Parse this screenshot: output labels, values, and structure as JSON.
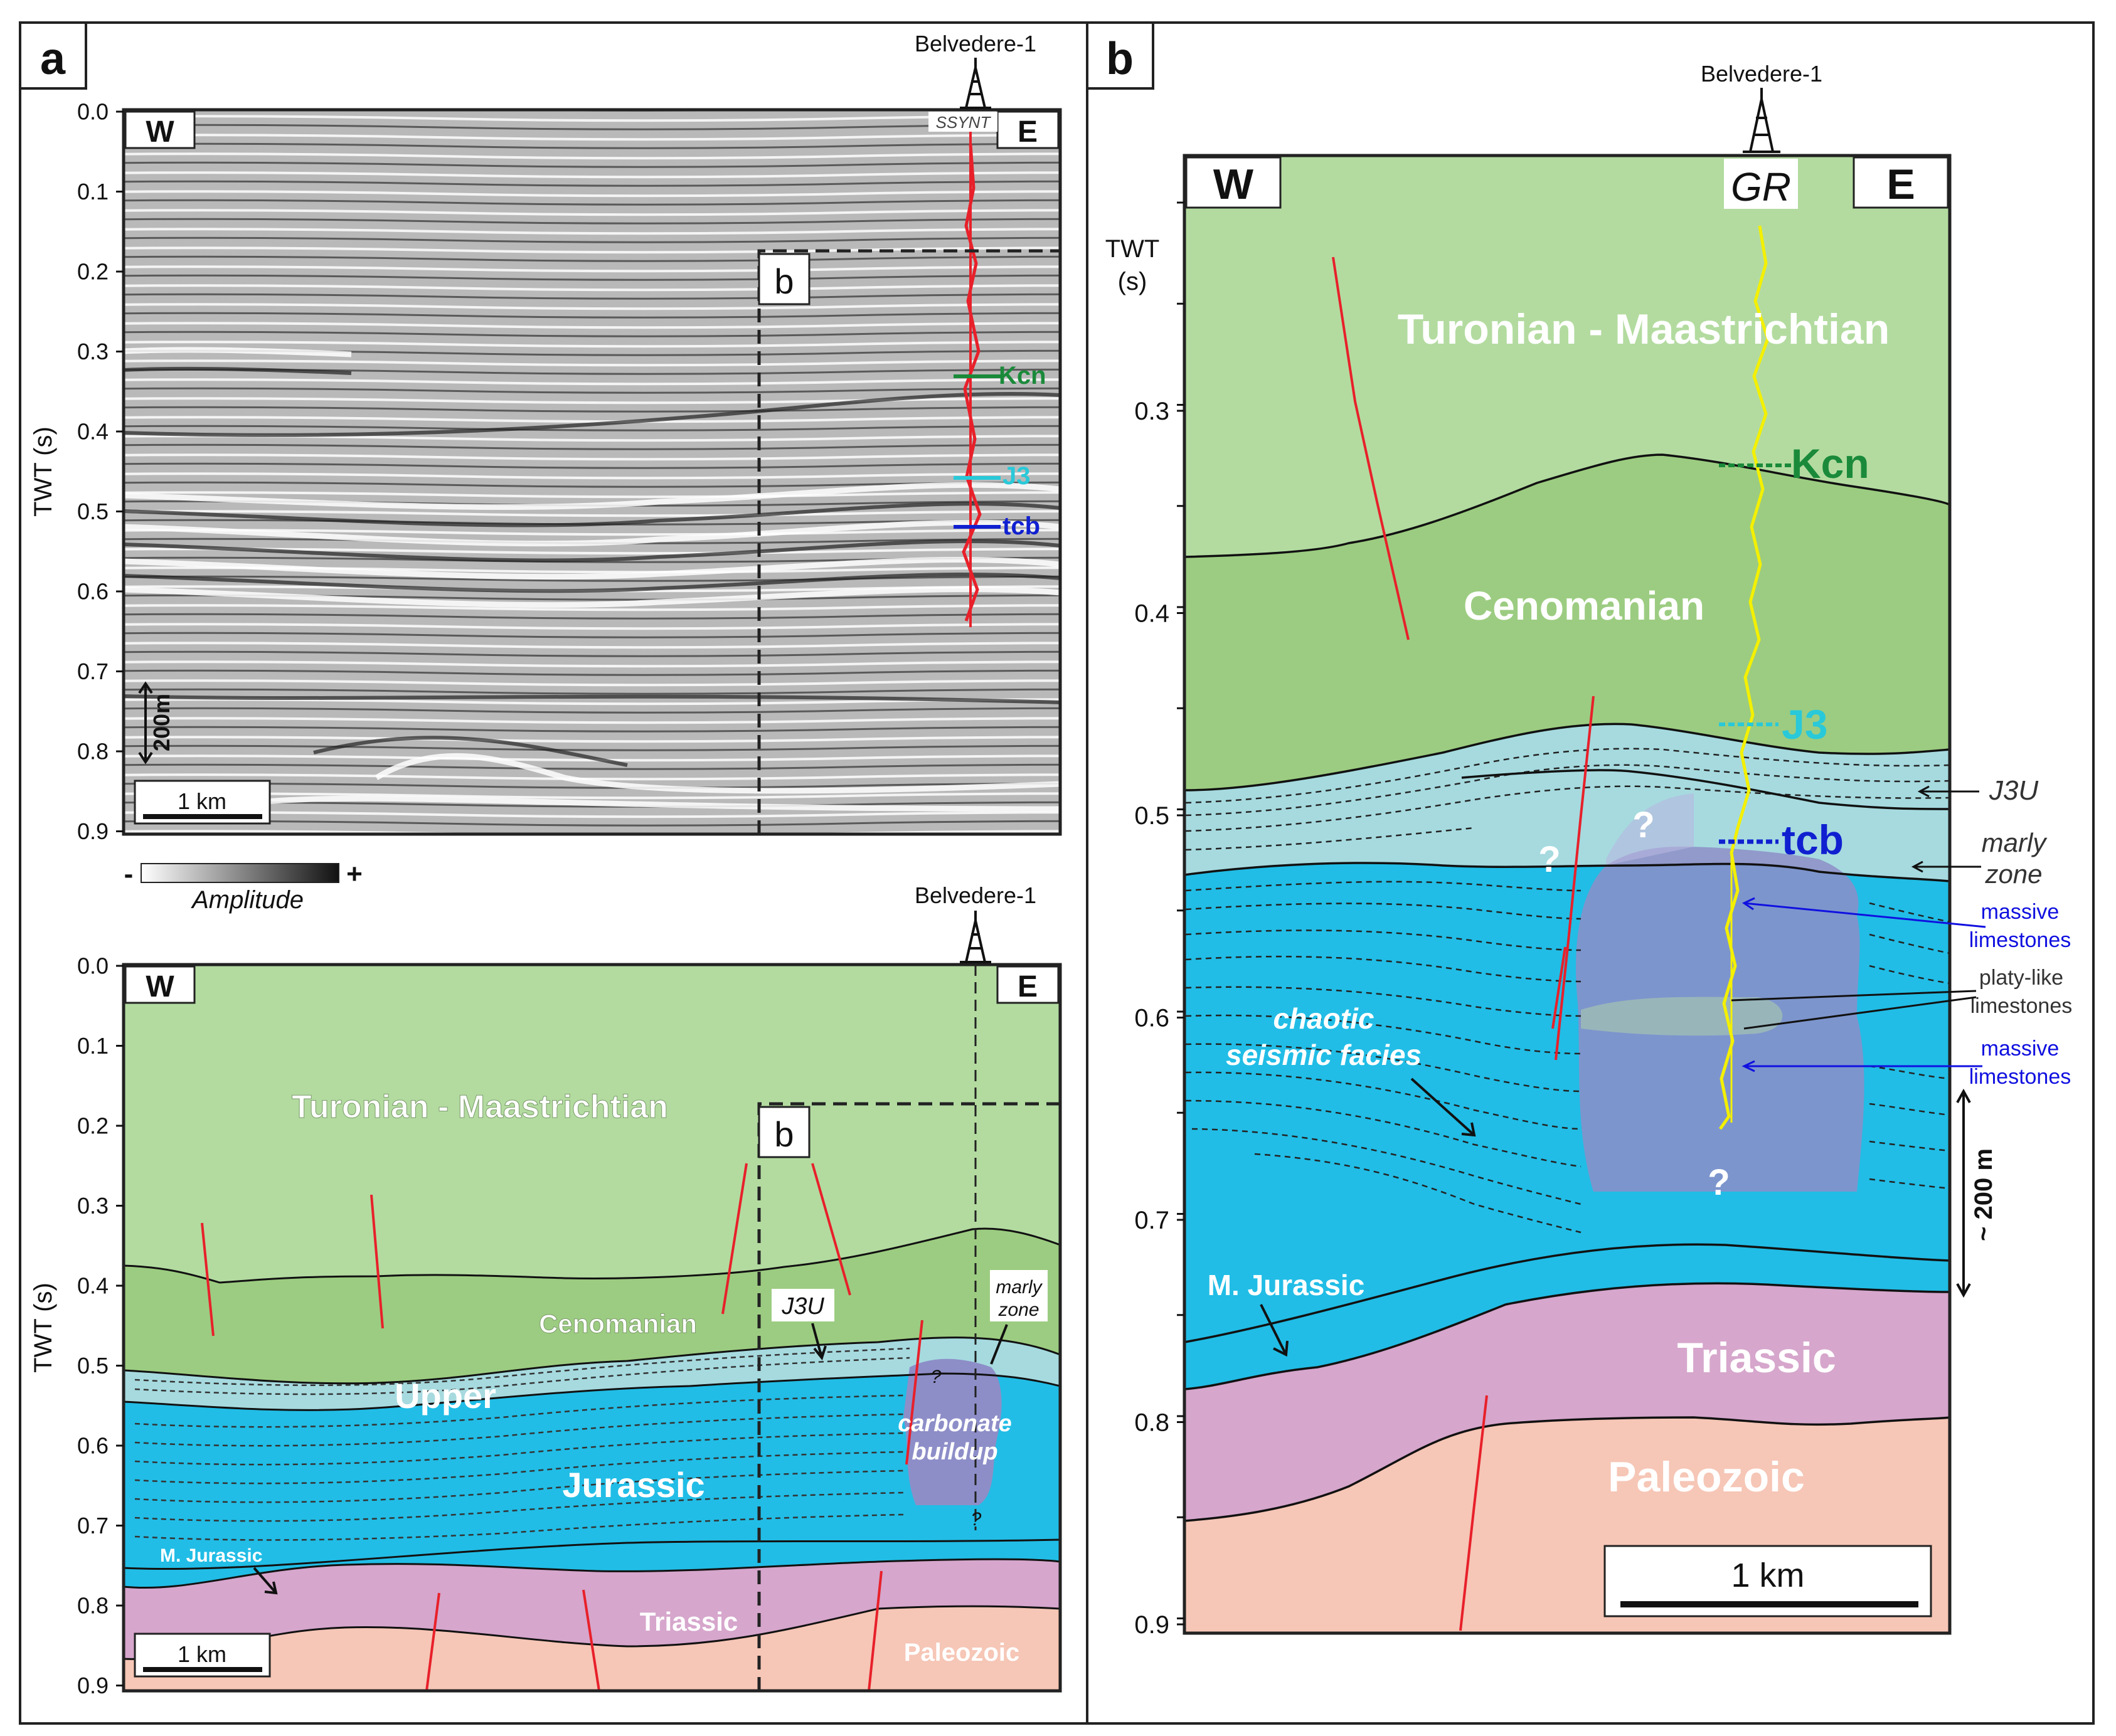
{
  "panel_a": {
    "label": "a",
    "well_name": "Belvedere-1",
    "well_log": "SSYNT",
    "west": "W",
    "east": "E",
    "axis_label": "TWT (s)",
    "ticks": [
      "0.0",
      "0.1",
      "0.2",
      "0.3",
      "0.4",
      "0.5",
      "0.6",
      "0.7",
      "0.8",
      "0.9"
    ],
    "inset_label": "b",
    "horizons": {
      "kcn": "Kcn",
      "j3": "J3",
      "tcb": "tcb"
    },
    "vertical_scale": "200m",
    "horizontal_scale": "1 km",
    "amplitude": {
      "label": "Amplitude",
      "minus": "-",
      "plus": "+"
    }
  },
  "panel_a2": {
    "well_name": "Belvedere-1",
    "west": "W",
    "east": "E",
    "axis_label": "TWT (s)",
    "ticks": [
      "0.0",
      "0.1",
      "0.2",
      "0.3",
      "0.4",
      "0.5",
      "0.6",
      "0.7",
      "0.8",
      "0.9"
    ],
    "inset_label": "b",
    "units": {
      "turonian": "Turonian - Maastrichtian",
      "cenomanian": "Cenomanian",
      "j3u": "J3U",
      "marly": [
        "marly",
        "zone"
      ],
      "upper": "Upper",
      "jurassic": "Jurassic",
      "carbonate": [
        "carbonate",
        "buildup"
      ],
      "m_jurassic": "M. Jurassic",
      "triassic": "Triassic",
      "paleozoic": "Paleozoic",
      "question": "?"
    },
    "horizontal_scale": "1 km"
  },
  "panel_b": {
    "label": "b",
    "well_name": "Belvedere-1",
    "well_log": "GR",
    "west": "W",
    "east": "E",
    "axis_label_1": "TWT",
    "axis_label_2": "(s)",
    "ticks": [
      "0.3",
      "0.4",
      "0.5",
      "0.6",
      "0.7",
      "0.8",
      "0.9"
    ],
    "horizons": {
      "kcn": "Kcn",
      "j3": "J3",
      "tcb": "tcb"
    },
    "units": {
      "turonian": "Turonian - Maastrichtian",
      "cenomanian": "Cenomanian",
      "m_jurassic": "M. Jurassic",
      "triassic": "Triassic",
      "paleozoic": "Paleozoic",
      "chaotic": [
        "chaotic",
        "seismic facies"
      ],
      "question": "?"
    },
    "annotations": {
      "j3u": "J3U",
      "marly": [
        "marly",
        "zone"
      ],
      "massive_1": [
        "massive",
        "limestones"
      ],
      "platy": [
        "platy-like",
        "limestones"
      ],
      "massive_2": [
        "massive",
        "limestones"
      ]
    },
    "vertical_scale": "~ 200 m",
    "horizontal_scale": "1 km"
  },
  "colors": {
    "turonian": "#b3dba0",
    "cenomanian": "#9ccc81",
    "jurassic_upper": "#a6dadf",
    "jurassic": "#21bde6",
    "triassic": "#d6a6cc",
    "paleozoic": "#f6c6b6",
    "buildup": "#8d8ec8",
    "kcn": "#1a8a3a",
    "j3": "#29c9d9",
    "tcb": "#1020d0",
    "fault": "#e8202a",
    "gr": "#f3f000",
    "massive": "#1010e0"
  }
}
